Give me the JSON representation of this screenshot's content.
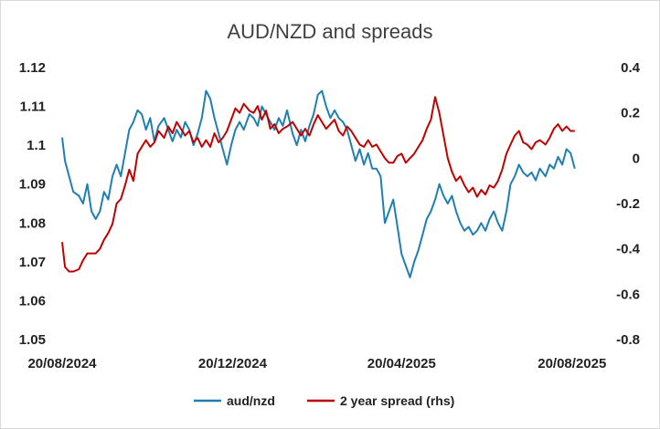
{
  "chart_data": {
    "type": "line",
    "title": "AUD/NZD and spreads",
    "xlabel": "",
    "ylabel": "",
    "x_tick_labels": [
      "20/08/2024",
      "20/12/2024",
      "20/04/2025",
      "20/08/2025"
    ],
    "x_tick_dates": [
      "2024-08-20",
      "2024-12-20",
      "2025-04-20",
      "2025-08-20"
    ],
    "xlim": [
      "2024-08-20",
      "2025-08-28"
    ],
    "ylim_left": [
      1.05,
      1.12
    ],
    "ylim_right": [
      -0.8,
      0.4
    ],
    "y_left_ticks": [
      "1.05",
      "1.06",
      "1.07",
      "1.08",
      "1.09",
      "1.1",
      "1.11",
      "1.12"
    ],
    "y_right_ticks": [
      "-0.8",
      "-0.6",
      "-0.4",
      "-0.2",
      "0",
      "0.2",
      "0.4"
    ],
    "grid": false,
    "legend_position": "bottom",
    "series": [
      {
        "name": "aud/nzd",
        "axis": "left",
        "color": "#1f7fb0",
        "points": [
          [
            "2024-08-20",
            1.102
          ],
          [
            "2024-08-22",
            1.096
          ],
          [
            "2024-08-25",
            1.092
          ],
          [
            "2024-08-28",
            1.088
          ],
          [
            "2024-09-01",
            1.087
          ],
          [
            "2024-09-04",
            1.085
          ],
          [
            "2024-09-07",
            1.09
          ],
          [
            "2024-09-10",
            1.083
          ],
          [
            "2024-09-13",
            1.081
          ],
          [
            "2024-09-16",
            1.083
          ],
          [
            "2024-09-19",
            1.088
          ],
          [
            "2024-09-22",
            1.086
          ],
          [
            "2024-09-25",
            1.092
          ],
          [
            "2024-09-28",
            1.095
          ],
          [
            "2024-10-01",
            1.092
          ],
          [
            "2024-10-04",
            1.098
          ],
          [
            "2024-10-07",
            1.104
          ],
          [
            "2024-10-10",
            1.106
          ],
          [
            "2024-10-13",
            1.109
          ],
          [
            "2024-10-16",
            1.108
          ],
          [
            "2024-10-19",
            1.104
          ],
          [
            "2024-10-22",
            1.107
          ],
          [
            "2024-10-25",
            1.101
          ],
          [
            "2024-10-28",
            1.105
          ],
          [
            "2024-11-01",
            1.107
          ],
          [
            "2024-11-04",
            1.104
          ],
          [
            "2024-11-07",
            1.101
          ],
          [
            "2024-11-10",
            1.104
          ],
          [
            "2024-11-13",
            1.102
          ],
          [
            "2024-11-16",
            1.106
          ],
          [
            "2024-11-19",
            1.104
          ],
          [
            "2024-11-22",
            1.1
          ],
          [
            "2024-11-25",
            1.103
          ],
          [
            "2024-11-28",
            1.107
          ],
          [
            "2024-12-01",
            1.114
          ],
          [
            "2024-12-04",
            1.112
          ],
          [
            "2024-12-07",
            1.107
          ],
          [
            "2024-12-10",
            1.103
          ],
          [
            "2024-12-13",
            1.099
          ],
          [
            "2024-12-16",
            1.095
          ],
          [
            "2024-12-19",
            1.1
          ],
          [
            "2024-12-22",
            1.104
          ],
          [
            "2024-12-25",
            1.106
          ],
          [
            "2024-12-28",
            1.104
          ],
          [
            "2025-01-01",
            1.108
          ],
          [
            "2025-01-04",
            1.107
          ],
          [
            "2025-01-07",
            1.105
          ],
          [
            "2025-01-10",
            1.11
          ],
          [
            "2025-01-13",
            1.108
          ],
          [
            "2025-01-16",
            1.106
          ],
          [
            "2025-01-19",
            1.104
          ],
          [
            "2025-01-22",
            1.107
          ],
          [
            "2025-01-25",
            1.105
          ],
          [
            "2025-01-28",
            1.109
          ],
          [
            "2025-02-01",
            1.103
          ],
          [
            "2025-02-04",
            1.1
          ],
          [
            "2025-02-07",
            1.104
          ],
          [
            "2025-02-10",
            1.101
          ],
          [
            "2025-02-13",
            1.105
          ],
          [
            "2025-02-16",
            1.108
          ],
          [
            "2025-02-19",
            1.113
          ],
          [
            "2025-02-22",
            1.114
          ],
          [
            "2025-02-25",
            1.11
          ],
          [
            "2025-02-28",
            1.107
          ],
          [
            "2025-03-03",
            1.109
          ],
          [
            "2025-03-06",
            1.107
          ],
          [
            "2025-03-09",
            1.106
          ],
          [
            "2025-03-12",
            1.104
          ],
          [
            "2025-03-15",
            1.1
          ],
          [
            "2025-03-18",
            1.096
          ],
          [
            "2025-03-21",
            1.099
          ],
          [
            "2025-03-24",
            1.095
          ],
          [
            "2025-03-27",
            1.098
          ],
          [
            "2025-03-30",
            1.094
          ],
          [
            "2025-04-02",
            1.094
          ],
          [
            "2025-04-05",
            1.092
          ],
          [
            "2025-04-08",
            1.08
          ],
          [
            "2025-04-11",
            1.083
          ],
          [
            "2025-04-14",
            1.086
          ],
          [
            "2025-04-17",
            1.079
          ],
          [
            "2025-04-20",
            1.072
          ],
          [
            "2025-04-23",
            1.069
          ],
          [
            "2025-04-26",
            1.066
          ],
          [
            "2025-04-29",
            1.07
          ],
          [
            "2025-05-02",
            1.073
          ],
          [
            "2025-05-05",
            1.077
          ],
          [
            "2025-05-08",
            1.081
          ],
          [
            "2025-05-11",
            1.083
          ],
          [
            "2025-05-14",
            1.086
          ],
          [
            "2025-05-17",
            1.09
          ],
          [
            "2025-05-20",
            1.087
          ],
          [
            "2025-05-23",
            1.085
          ],
          [
            "2025-05-26",
            1.087
          ],
          [
            "2025-05-29",
            1.083
          ],
          [
            "2025-06-01",
            1.08
          ],
          [
            "2025-06-04",
            1.078
          ],
          [
            "2025-06-07",
            1.079
          ],
          [
            "2025-06-10",
            1.077
          ],
          [
            "2025-06-13",
            1.078
          ],
          [
            "2025-06-16",
            1.08
          ],
          [
            "2025-06-19",
            1.078
          ],
          [
            "2025-06-22",
            1.081
          ],
          [
            "2025-06-25",
            1.083
          ],
          [
            "2025-06-28",
            1.08
          ],
          [
            "2025-07-01",
            1.078
          ],
          [
            "2025-07-04",
            1.083
          ],
          [
            "2025-07-07",
            1.09
          ],
          [
            "2025-07-10",
            1.092
          ],
          [
            "2025-07-13",
            1.095
          ],
          [
            "2025-07-16",
            1.093
          ],
          [
            "2025-07-19",
            1.092
          ],
          [
            "2025-07-22",
            1.093
          ],
          [
            "2025-07-25",
            1.091
          ],
          [
            "2025-07-28",
            1.094
          ],
          [
            "2025-08-01",
            1.092
          ],
          [
            "2025-08-04",
            1.095
          ],
          [
            "2025-08-07",
            1.094
          ],
          [
            "2025-08-10",
            1.097
          ],
          [
            "2025-08-13",
            1.095
          ],
          [
            "2025-08-16",
            1.099
          ],
          [
            "2025-08-19",
            1.098
          ],
          [
            "2025-08-22",
            1.094
          ]
        ]
      },
      {
        "name": "2 year spread (rhs)",
        "axis": "right",
        "color": "#c00000",
        "points": [
          [
            "2024-08-20",
            -0.37
          ],
          [
            "2024-08-22",
            -0.48
          ],
          [
            "2024-08-25",
            -0.5
          ],
          [
            "2024-08-28",
            -0.5
          ],
          [
            "2024-09-01",
            -0.49
          ],
          [
            "2024-09-04",
            -0.45
          ],
          [
            "2024-09-07",
            -0.42
          ],
          [
            "2024-09-10",
            -0.42
          ],
          [
            "2024-09-13",
            -0.42
          ],
          [
            "2024-09-16",
            -0.4
          ],
          [
            "2024-09-19",
            -0.36
          ],
          [
            "2024-09-22",
            -0.33
          ],
          [
            "2024-09-25",
            -0.29
          ],
          [
            "2024-09-28",
            -0.2
          ],
          [
            "2024-10-01",
            -0.18
          ],
          [
            "2024-10-04",
            -0.12
          ],
          [
            "2024-10-07",
            -0.05
          ],
          [
            "2024-10-10",
            -0.1
          ],
          [
            "2024-10-13",
            0.02
          ],
          [
            "2024-10-16",
            0.05
          ],
          [
            "2024-10-19",
            0.08
          ],
          [
            "2024-10-22",
            0.05
          ],
          [
            "2024-10-25",
            0.07
          ],
          [
            "2024-10-28",
            0.12
          ],
          [
            "2024-11-01",
            0.09
          ],
          [
            "2024-11-04",
            0.14
          ],
          [
            "2024-11-07",
            0.11
          ],
          [
            "2024-11-10",
            0.16
          ],
          [
            "2024-11-13",
            0.13
          ],
          [
            "2024-11-16",
            0.1
          ],
          [
            "2024-11-19",
            0.12
          ],
          [
            "2024-11-22",
            0.07
          ],
          [
            "2024-11-25",
            0.09
          ],
          [
            "2024-11-28",
            0.05
          ],
          [
            "2024-12-01",
            0.08
          ],
          [
            "2024-12-04",
            0.05
          ],
          [
            "2024-12-07",
            0.11
          ],
          [
            "2024-12-10",
            0.07
          ],
          [
            "2024-12-13",
            0.09
          ],
          [
            "2024-12-16",
            0.12
          ],
          [
            "2024-12-19",
            0.17
          ],
          [
            "2024-12-22",
            0.22
          ],
          [
            "2024-12-25",
            0.2
          ],
          [
            "2024-12-28",
            0.24
          ],
          [
            "2025-01-01",
            0.21
          ],
          [
            "2025-01-04",
            0.2
          ],
          [
            "2025-01-07",
            0.23
          ],
          [
            "2025-01-10",
            0.17
          ],
          [
            "2025-01-13",
            0.21
          ],
          [
            "2025-01-16",
            0.13
          ],
          [
            "2025-01-19",
            0.15
          ],
          [
            "2025-01-22",
            0.11
          ],
          [
            "2025-01-25",
            0.13
          ],
          [
            "2025-01-28",
            0.14
          ],
          [
            "2025-02-01",
            0.16
          ],
          [
            "2025-02-04",
            0.13
          ],
          [
            "2025-02-07",
            0.1
          ],
          [
            "2025-02-10",
            0.13
          ],
          [
            "2025-02-13",
            0.1
          ],
          [
            "2025-02-16",
            0.15
          ],
          [
            "2025-02-19",
            0.19
          ],
          [
            "2025-02-22",
            0.16
          ],
          [
            "2025-02-25",
            0.13
          ],
          [
            "2025-02-28",
            0.15
          ],
          [
            "2025-03-03",
            0.17
          ],
          [
            "2025-03-06",
            0.12
          ],
          [
            "2025-03-09",
            0.1
          ],
          [
            "2025-03-12",
            0.14
          ],
          [
            "2025-03-15",
            0.12
          ],
          [
            "2025-03-18",
            0.09
          ],
          [
            "2025-03-21",
            0.06
          ],
          [
            "2025-03-24",
            0.05
          ],
          [
            "2025-03-27",
            0.08
          ],
          [
            "2025-03-30",
            0.05
          ],
          [
            "2025-04-02",
            0.06
          ],
          [
            "2025-04-05",
            0.03
          ],
          [
            "2025-04-08",
            0.0
          ],
          [
            "2025-04-11",
            -0.02
          ],
          [
            "2025-04-14",
            -0.02
          ],
          [
            "2025-04-17",
            0.01
          ],
          [
            "2025-04-20",
            0.02
          ],
          [
            "2025-04-23",
            -0.02
          ],
          [
            "2025-04-26",
            0.0
          ],
          [
            "2025-04-29",
            0.02
          ],
          [
            "2025-05-02",
            0.05
          ],
          [
            "2025-05-05",
            0.08
          ],
          [
            "2025-05-08",
            0.13
          ],
          [
            "2025-05-11",
            0.17
          ],
          [
            "2025-05-14",
            0.27
          ],
          [
            "2025-05-17",
            0.2
          ],
          [
            "2025-05-20",
            0.1
          ],
          [
            "2025-05-23",
            0.0
          ],
          [
            "2025-05-26",
            -0.06
          ],
          [
            "2025-05-29",
            -0.1
          ],
          [
            "2025-06-01",
            -0.08
          ],
          [
            "2025-06-04",
            -0.12
          ],
          [
            "2025-06-07",
            -0.15
          ],
          [
            "2025-06-10",
            -0.13
          ],
          [
            "2025-06-13",
            -0.17
          ],
          [
            "2025-06-16",
            -0.14
          ],
          [
            "2025-06-19",
            -0.16
          ],
          [
            "2025-06-22",
            -0.12
          ],
          [
            "2025-06-25",
            -0.13
          ],
          [
            "2025-06-28",
            -0.1
          ],
          [
            "2025-07-01",
            -0.05
          ],
          [
            "2025-07-04",
            0.02
          ],
          [
            "2025-07-07",
            0.06
          ],
          [
            "2025-07-10",
            0.1
          ],
          [
            "2025-07-13",
            0.12
          ],
          [
            "2025-07-16",
            0.07
          ],
          [
            "2025-07-19",
            0.06
          ],
          [
            "2025-07-22",
            0.04
          ],
          [
            "2025-07-25",
            0.07
          ],
          [
            "2025-07-28",
            0.08
          ],
          [
            "2025-08-01",
            0.06
          ],
          [
            "2025-08-04",
            0.09
          ],
          [
            "2025-08-07",
            0.13
          ],
          [
            "2025-08-10",
            0.15
          ],
          [
            "2025-08-13",
            0.12
          ],
          [
            "2025-08-16",
            0.14
          ],
          [
            "2025-08-19",
            0.12
          ],
          [
            "2025-08-22",
            0.12
          ]
        ]
      }
    ]
  }
}
